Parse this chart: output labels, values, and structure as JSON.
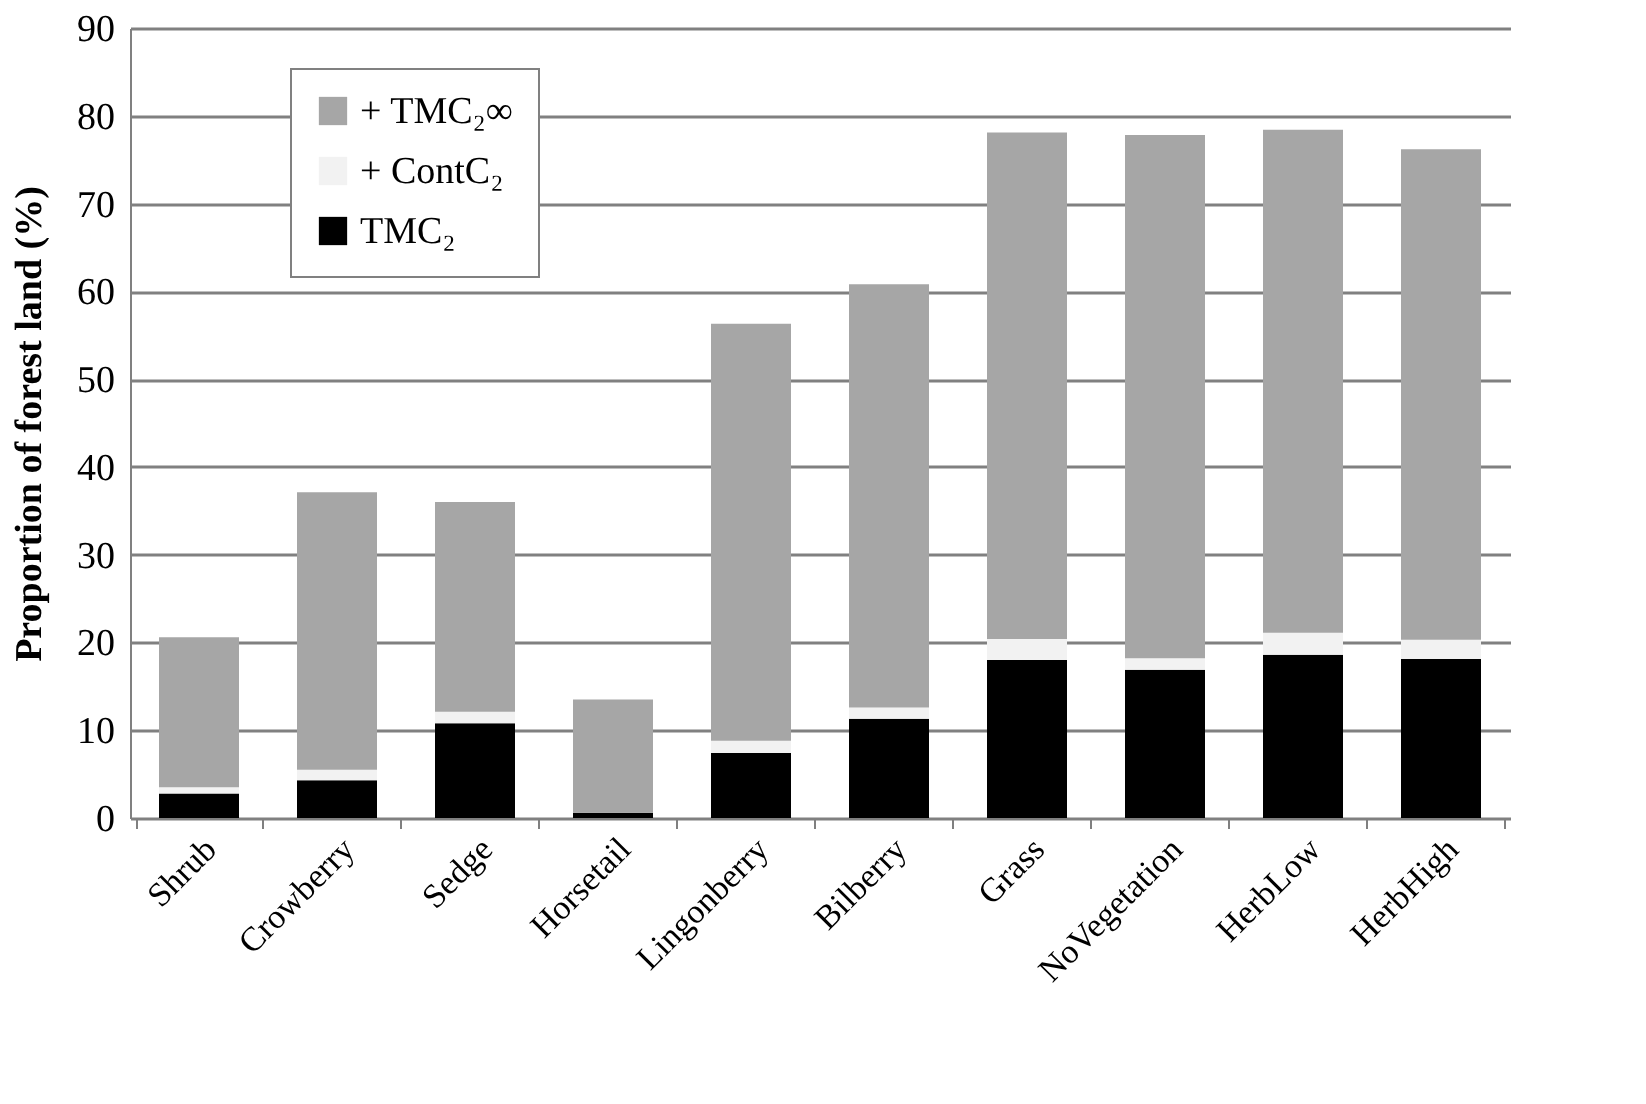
{
  "chart_data": {
    "type": "bar",
    "stacked": true,
    "ylabel": "Proportion of forest land (%)",
    "categories": [
      "Shrub",
      "Crowberry",
      "Sedge",
      "Horsetail",
      "Lingonberry",
      "Bilberry",
      "Grass",
      "NoVegetation",
      "HerbLow",
      "HerbHigh"
    ],
    "series": [
      {
        "name": "TMC₂",
        "color": "#000000",
        "values": [
          2.8,
          4.3,
          10.8,
          0.6,
          7.4,
          11.3,
          18.0,
          16.9,
          18.6,
          18.1
        ]
      },
      {
        "name": "+ ContC₂",
        "color": "#f2f2f2",
        "values": [
          0.7,
          1.2,
          1.3,
          null,
          1.4,
          1.3,
          2.4,
          1.3,
          2.5,
          2.2
        ]
      },
      {
        "name": "+ TMC₂∞",
        "color": "#a6a6a6",
        "values": [
          17.1,
          31.6,
          23.9,
          12.9,
          47.5,
          48.2,
          57.7,
          59.6,
          57.3,
          55.9
        ]
      }
    ],
    "ylim": [
      0,
      90
    ],
    "yticks": [
      0,
      10,
      20,
      30,
      40,
      50,
      60,
      70,
      80,
      90
    ],
    "grid": "y",
    "legend": "top left"
  }
}
